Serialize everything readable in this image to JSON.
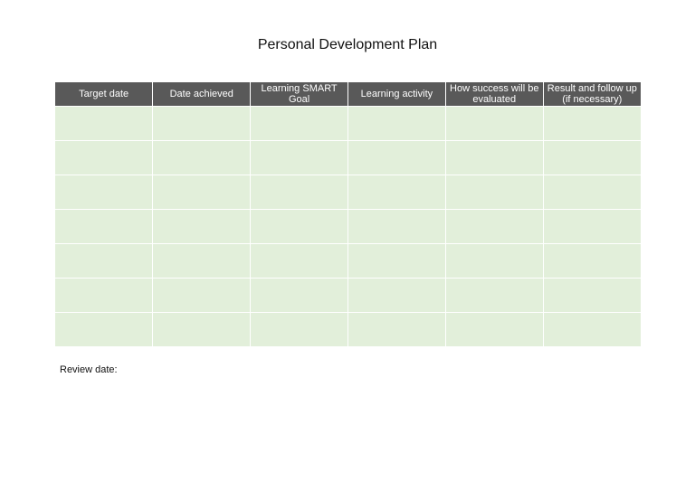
{
  "document": {
    "title": "Personal Development Plan",
    "table": {
      "headers": [
        "Target date",
        "Date achieved",
        "Learning SMART Goal",
        "Learning activity",
        "How success will be evaluated",
        "Result and follow up (if necessary)"
      ],
      "rows": [
        [
          "",
          "",
          "",
          "",
          "",
          ""
        ],
        [
          "",
          "",
          "",
          "",
          "",
          ""
        ],
        [
          "",
          "",
          "",
          "",
          "",
          ""
        ],
        [
          "",
          "",
          "",
          "",
          "",
          ""
        ],
        [
          "",
          "",
          "",
          "",
          "",
          ""
        ],
        [
          "",
          "",
          "",
          "",
          "",
          ""
        ],
        [
          "",
          "",
          "",
          "",
          "",
          ""
        ]
      ]
    },
    "review_label": "Review date:"
  },
  "colors": {
    "header_background": "#595959",
    "header_text": "#ffffff",
    "cell_background": "#e2efda"
  }
}
